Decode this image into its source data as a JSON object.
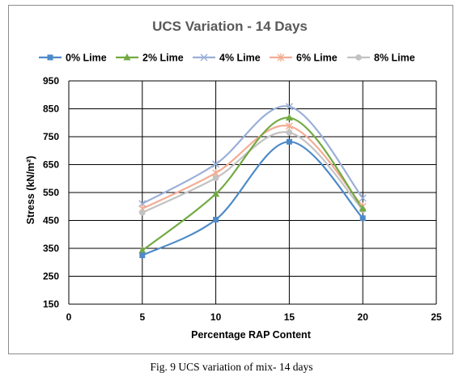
{
  "caption": "Fig. 9 UCS variation of mix- 14 days",
  "chart_data": {
    "type": "line",
    "title": "UCS Variation - 14 Days",
    "xlabel": "Percentage RAP Content",
    "ylabel": "Stress (kN/m²)",
    "xlim": [
      0,
      25
    ],
    "ylim": [
      150,
      950
    ],
    "xticks": [
      0,
      5,
      10,
      15,
      20,
      25
    ],
    "yticks": [
      150,
      250,
      350,
      450,
      550,
      650,
      750,
      850,
      950
    ],
    "grid": true,
    "smooth": true,
    "legend_position": "top",
    "x": [
      5,
      10,
      15,
      20
    ],
    "series": [
      {
        "name": "0% Lime",
        "values": [
          325,
          453,
          732,
          458
        ],
        "color": "#4e8ac8",
        "marker": "square"
      },
      {
        "name": "2% Lime",
        "values": [
          342,
          545,
          818,
          492
        ],
        "color": "#72aa42",
        "marker": "triangle"
      },
      {
        "name": "4% Lime",
        "values": [
          510,
          652,
          858,
          530
        ],
        "color": "#9aafd8",
        "marker": "x"
      },
      {
        "name": "6% Lime",
        "values": [
          492,
          620,
          788,
          500
        ],
        "color": "#f2ad94",
        "marker": "star"
      },
      {
        "name": "8% Lime",
        "values": [
          478,
          602,
          765,
          488
        ],
        "color": "#c2c2c2",
        "marker": "circle"
      }
    ]
  }
}
